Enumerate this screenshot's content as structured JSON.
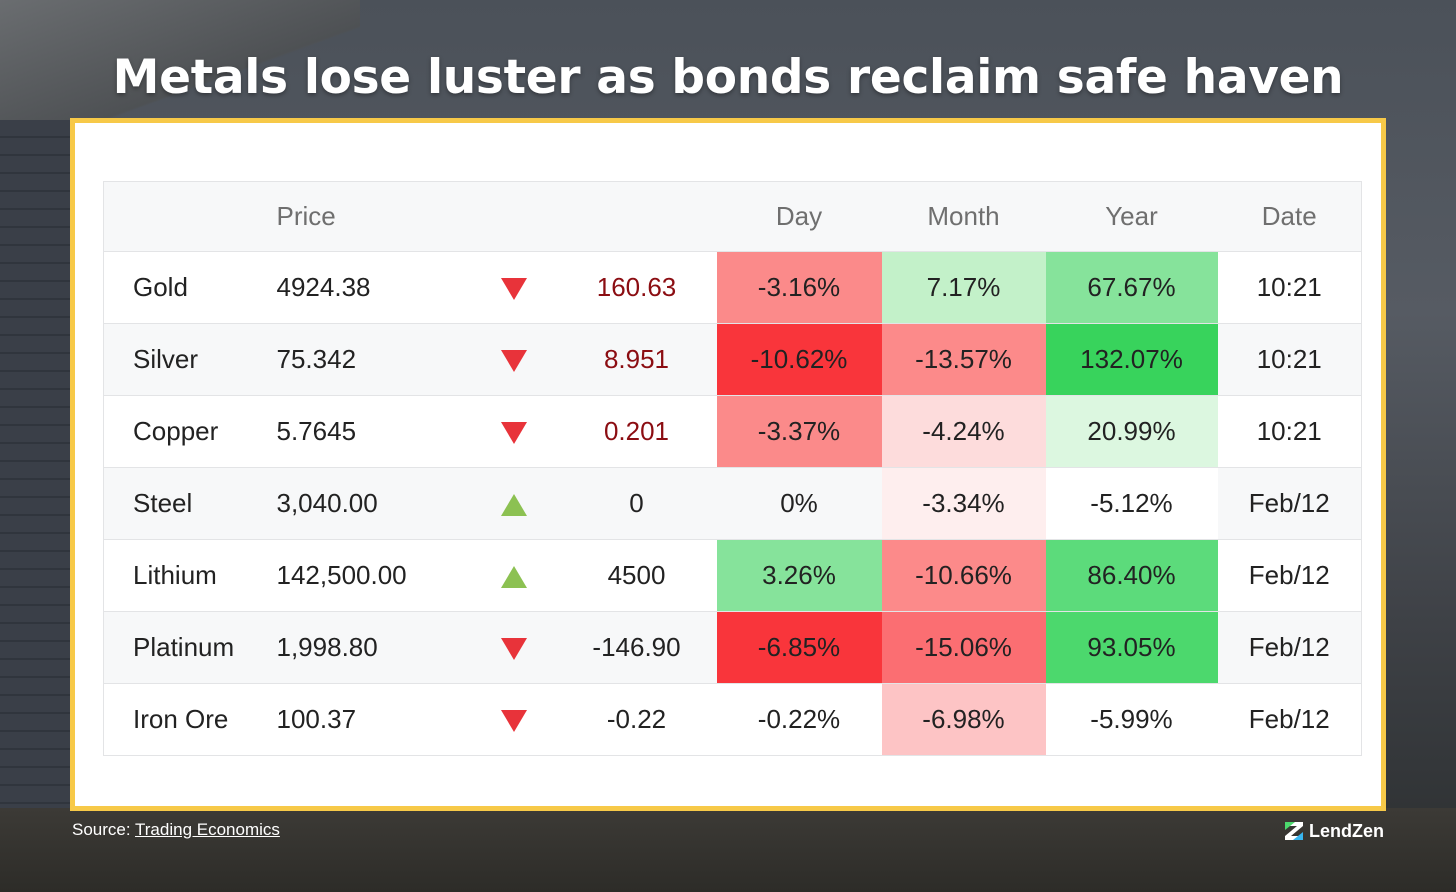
{
  "headline": "Metals lose luster as bonds reclaim safe haven",
  "source": {
    "prefix": "Source:",
    "link_text": "Trading Economics"
  },
  "brand": {
    "name": "LendZen",
    "icon": "lendzen-logo-icon"
  },
  "colors": {
    "accent_border": "#f7c948",
    "down_arrow": "#e8333a",
    "up_arrow": "#8cc152",
    "change_negative_text": "#8b0d12"
  },
  "chart_data": {
    "type": "table",
    "title": "Metals lose luster as bonds reclaim safe haven",
    "columns": [
      "",
      "Price",
      "",
      "",
      "Day",
      "Month",
      "Year",
      "Date"
    ],
    "rows": [
      {
        "name": "Gold",
        "price": "4924.38",
        "direction": "down",
        "change": "160.63",
        "change_color": "neg",
        "day": "-3.16%",
        "month": "7.17%",
        "year": "67.67%",
        "date": "10:21",
        "day_bg": "#fb8a8a",
        "month_bg": "#c3f1c9",
        "year_bg": "#86e39b"
      },
      {
        "name": "Silver",
        "price": "75.342",
        "direction": "down",
        "change": "8.951",
        "change_color": "neg",
        "day": "-10.62%",
        "month": "-13.57%",
        "year": "132.07%",
        "date": "10:21",
        "day_bg": "#f9353b",
        "month_bg": "#fc8a8a",
        "year_bg": "#38d35c"
      },
      {
        "name": "Copper",
        "price": "5.7645",
        "direction": "down",
        "change": "0.201",
        "change_color": "neg",
        "day": "-3.37%",
        "month": "-4.24%",
        "year": "20.99%",
        "date": "10:21",
        "day_bg": "#fb8a8a",
        "month_bg": "#fddcdc",
        "year_bg": "#dcf7e0"
      },
      {
        "name": "Steel",
        "price": "3,040.00",
        "direction": "up",
        "change": "0",
        "change_color": "neu",
        "day": "0%",
        "month": "-3.34%",
        "year": "-5.12%",
        "date": "Feb/12",
        "day_bg": "",
        "month_bg": "#feeeee",
        "year_bg": "#ffffff"
      },
      {
        "name": "Lithium",
        "price": "142,500.00",
        "direction": "up",
        "change": "4500",
        "change_color": "neu",
        "day": "3.26%",
        "month": "-10.66%",
        "year": "86.40%",
        "date": "Feb/12",
        "day_bg": "#86e39b",
        "month_bg": "#fc8a8a",
        "year_bg": "#5cdb7b"
      },
      {
        "name": "Platinum",
        "price": "1,998.80",
        "direction": "down",
        "change": "-146.90",
        "change_color": "neu",
        "day": "-6.85%",
        "month": "-15.06%",
        "year": "93.05%",
        "date": "Feb/12",
        "day_bg": "#f9353b",
        "month_bg": "#fb6e72",
        "year_bg": "#4cd86d"
      },
      {
        "name": "Iron Ore",
        "price": "100.37",
        "direction": "down",
        "change": "-0.22",
        "change_color": "neu",
        "day": "-0.22%",
        "month": "-6.98%",
        "year": "-5.99%",
        "date": "Feb/12",
        "day_bg": "",
        "month_bg": "#fdc4c5",
        "year_bg": ""
      }
    ]
  }
}
